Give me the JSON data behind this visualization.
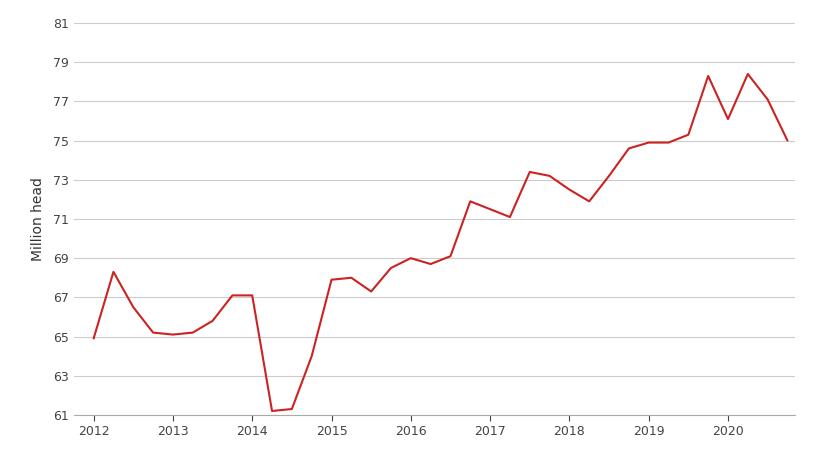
{
  "ylabel": "Million head",
  "line_color": "#cc2222",
  "background_color": "#ffffff",
  "grid_color": "#cccccc",
  "ylim": [
    61,
    81
  ],
  "yticks": [
    61,
    63,
    65,
    67,
    69,
    71,
    73,
    75,
    77,
    79,
    81
  ],
  "x_values": [
    2012.0,
    2012.25,
    2012.5,
    2012.75,
    2013.0,
    2013.25,
    2013.5,
    2013.75,
    2014.0,
    2014.25,
    2014.5,
    2014.75,
    2015.0,
    2015.25,
    2015.5,
    2015.75,
    2016.0,
    2016.25,
    2016.5,
    2016.75,
    2017.0,
    2017.25,
    2017.5,
    2017.75,
    2018.0,
    2018.25,
    2018.5,
    2018.75,
    2019.0,
    2019.25,
    2019.5,
    2019.75,
    2020.0,
    2020.25,
    2020.5,
    2020.75
  ],
  "y_values": [
    64.9,
    68.3,
    66.5,
    65.2,
    65.1,
    65.2,
    65.8,
    67.1,
    67.1,
    61.2,
    61.3,
    64.0,
    67.9,
    68.0,
    67.3,
    68.5,
    69.0,
    68.7,
    69.1,
    71.9,
    71.5,
    71.1,
    73.4,
    73.2,
    72.5,
    71.9,
    73.2,
    74.6,
    74.9,
    74.9,
    75.3,
    78.3,
    76.1,
    78.4,
    77.1,
    75.0
  ],
  "xticks": [
    2012,
    2013,
    2014,
    2015,
    2016,
    2017,
    2018,
    2019,
    2020
  ],
  "xlim": [
    2011.75,
    2020.85
  ],
  "line_width": 1.5,
  "figsize": [
    8.2,
    4.61
  ],
  "dpi": 100
}
